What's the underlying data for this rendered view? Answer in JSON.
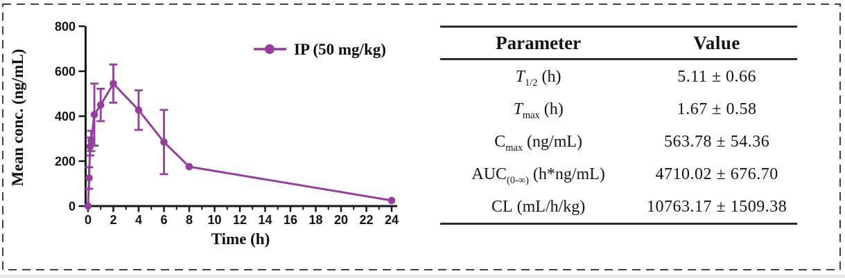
{
  "chart_data": {
    "type": "line",
    "title": "",
    "xlabel": "Time (h)",
    "ylabel": "Mean conc. (ng/mL)",
    "xlim": [
      0,
      24
    ],
    "ylim": [
      0,
      800
    ],
    "x_major_ticks": [
      0,
      2,
      4,
      6,
      8,
      10,
      12,
      14,
      16,
      18,
      20,
      22,
      24
    ],
    "x_minor_ticks": [
      1,
      3,
      5,
      7,
      9,
      11,
      13,
      15,
      17,
      19,
      21,
      23
    ],
    "y_major_ticks": [
      0,
      200,
      400,
      600,
      800
    ],
    "y_minor_ticks": [],
    "grid": false,
    "legend_position": "top-right",
    "error_bars": true,
    "series": [
      {
        "name": "IP (50 mg/kg)",
        "color": "#943e9e",
        "marker": "circle",
        "x": [
          0,
          0.083,
          0.167,
          0.25,
          0.5,
          1,
          2,
          4,
          6,
          8,
          24
        ],
        "y": [
          0,
          125,
          265,
          290,
          407,
          450,
          545,
          427,
          285,
          175,
          25
        ],
        "error": [
          0,
          48,
          40,
          45,
          138,
          72,
          85,
          88,
          143,
          0,
          0
        ]
      }
    ]
  },
  "table": {
    "headers": {
      "parameter": "Parameter",
      "value": "Value"
    },
    "rows": [
      {
        "base": "T",
        "sub": "1/2",
        "suffix": " (h)",
        "value": "5.11 ± 0.66"
      },
      {
        "base": "T",
        "sub": "max",
        "suffix": " (h)",
        "value": "1.67 ± 0.58"
      },
      {
        "base": "C",
        "sub": "max",
        "suffix": " (ng/mL)",
        "value": "563.78 ± 54.36"
      },
      {
        "base": "AUC",
        "sub": "(0-∞)",
        "suffix": " (h*ng/mL)",
        "value": "4710.02 ± 676.70"
      },
      {
        "base": "CL",
        "sub": "",
        "suffix": " (mL/h/kg)",
        "value": "10763.17 ± 1509.38"
      }
    ]
  },
  "colors": {
    "series_purple": "#943e9e",
    "axis_black": "#161616",
    "frame_dash_gray": "#3f3f3f"
  }
}
